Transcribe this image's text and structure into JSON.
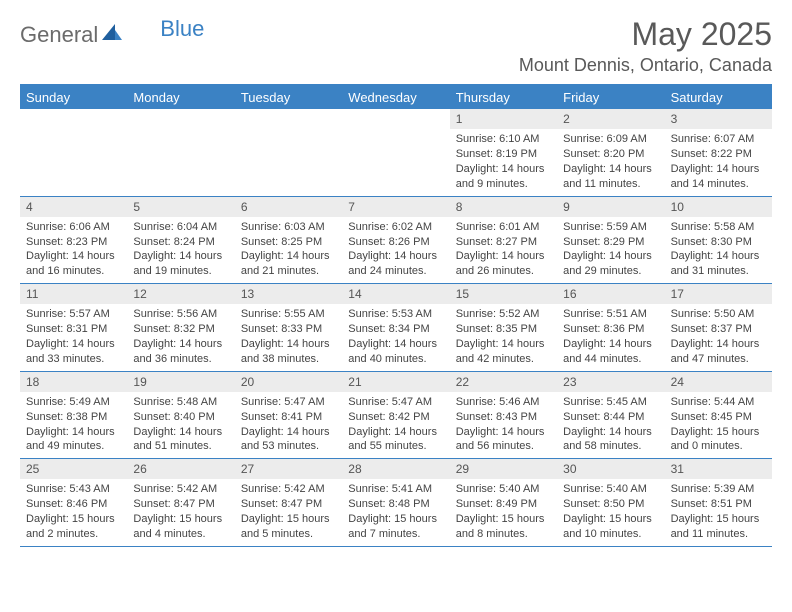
{
  "logo": {
    "text1": "General",
    "text2": "Blue"
  },
  "title": "May 2025",
  "location": "Mount Dennis, Ontario, Canada",
  "colors": {
    "accent": "#3b82c4",
    "header_text": "#595959",
    "day_band": "#ececec",
    "body_text": "#444444",
    "background": "#ffffff"
  },
  "dow": [
    "Sunday",
    "Monday",
    "Tuesday",
    "Wednesday",
    "Thursday",
    "Friday",
    "Saturday"
  ],
  "weeks": [
    [
      {
        "n": "",
        "sr": "",
        "ss": "",
        "dl": ""
      },
      {
        "n": "",
        "sr": "",
        "ss": "",
        "dl": ""
      },
      {
        "n": "",
        "sr": "",
        "ss": "",
        "dl": ""
      },
      {
        "n": "",
        "sr": "",
        "ss": "",
        "dl": ""
      },
      {
        "n": "1",
        "sr": "Sunrise: 6:10 AM",
        "ss": "Sunset: 8:19 PM",
        "dl": "Daylight: 14 hours and 9 minutes."
      },
      {
        "n": "2",
        "sr": "Sunrise: 6:09 AM",
        "ss": "Sunset: 8:20 PM",
        "dl": "Daylight: 14 hours and 11 minutes."
      },
      {
        "n": "3",
        "sr": "Sunrise: 6:07 AM",
        "ss": "Sunset: 8:22 PM",
        "dl": "Daylight: 14 hours and 14 minutes."
      }
    ],
    [
      {
        "n": "4",
        "sr": "Sunrise: 6:06 AM",
        "ss": "Sunset: 8:23 PM",
        "dl": "Daylight: 14 hours and 16 minutes."
      },
      {
        "n": "5",
        "sr": "Sunrise: 6:04 AM",
        "ss": "Sunset: 8:24 PM",
        "dl": "Daylight: 14 hours and 19 minutes."
      },
      {
        "n": "6",
        "sr": "Sunrise: 6:03 AM",
        "ss": "Sunset: 8:25 PM",
        "dl": "Daylight: 14 hours and 21 minutes."
      },
      {
        "n": "7",
        "sr": "Sunrise: 6:02 AM",
        "ss": "Sunset: 8:26 PM",
        "dl": "Daylight: 14 hours and 24 minutes."
      },
      {
        "n": "8",
        "sr": "Sunrise: 6:01 AM",
        "ss": "Sunset: 8:27 PM",
        "dl": "Daylight: 14 hours and 26 minutes."
      },
      {
        "n": "9",
        "sr": "Sunrise: 5:59 AM",
        "ss": "Sunset: 8:29 PM",
        "dl": "Daylight: 14 hours and 29 minutes."
      },
      {
        "n": "10",
        "sr": "Sunrise: 5:58 AM",
        "ss": "Sunset: 8:30 PM",
        "dl": "Daylight: 14 hours and 31 minutes."
      }
    ],
    [
      {
        "n": "11",
        "sr": "Sunrise: 5:57 AM",
        "ss": "Sunset: 8:31 PM",
        "dl": "Daylight: 14 hours and 33 minutes."
      },
      {
        "n": "12",
        "sr": "Sunrise: 5:56 AM",
        "ss": "Sunset: 8:32 PM",
        "dl": "Daylight: 14 hours and 36 minutes."
      },
      {
        "n": "13",
        "sr": "Sunrise: 5:55 AM",
        "ss": "Sunset: 8:33 PM",
        "dl": "Daylight: 14 hours and 38 minutes."
      },
      {
        "n": "14",
        "sr": "Sunrise: 5:53 AM",
        "ss": "Sunset: 8:34 PM",
        "dl": "Daylight: 14 hours and 40 minutes."
      },
      {
        "n": "15",
        "sr": "Sunrise: 5:52 AM",
        "ss": "Sunset: 8:35 PM",
        "dl": "Daylight: 14 hours and 42 minutes."
      },
      {
        "n": "16",
        "sr": "Sunrise: 5:51 AM",
        "ss": "Sunset: 8:36 PM",
        "dl": "Daylight: 14 hours and 44 minutes."
      },
      {
        "n": "17",
        "sr": "Sunrise: 5:50 AM",
        "ss": "Sunset: 8:37 PM",
        "dl": "Daylight: 14 hours and 47 minutes."
      }
    ],
    [
      {
        "n": "18",
        "sr": "Sunrise: 5:49 AM",
        "ss": "Sunset: 8:38 PM",
        "dl": "Daylight: 14 hours and 49 minutes."
      },
      {
        "n": "19",
        "sr": "Sunrise: 5:48 AM",
        "ss": "Sunset: 8:40 PM",
        "dl": "Daylight: 14 hours and 51 minutes."
      },
      {
        "n": "20",
        "sr": "Sunrise: 5:47 AM",
        "ss": "Sunset: 8:41 PM",
        "dl": "Daylight: 14 hours and 53 minutes."
      },
      {
        "n": "21",
        "sr": "Sunrise: 5:47 AM",
        "ss": "Sunset: 8:42 PM",
        "dl": "Daylight: 14 hours and 55 minutes."
      },
      {
        "n": "22",
        "sr": "Sunrise: 5:46 AM",
        "ss": "Sunset: 8:43 PM",
        "dl": "Daylight: 14 hours and 56 minutes."
      },
      {
        "n": "23",
        "sr": "Sunrise: 5:45 AM",
        "ss": "Sunset: 8:44 PM",
        "dl": "Daylight: 14 hours and 58 minutes."
      },
      {
        "n": "24",
        "sr": "Sunrise: 5:44 AM",
        "ss": "Sunset: 8:45 PM",
        "dl": "Daylight: 15 hours and 0 minutes."
      }
    ],
    [
      {
        "n": "25",
        "sr": "Sunrise: 5:43 AM",
        "ss": "Sunset: 8:46 PM",
        "dl": "Daylight: 15 hours and 2 minutes."
      },
      {
        "n": "26",
        "sr": "Sunrise: 5:42 AM",
        "ss": "Sunset: 8:47 PM",
        "dl": "Daylight: 15 hours and 4 minutes."
      },
      {
        "n": "27",
        "sr": "Sunrise: 5:42 AM",
        "ss": "Sunset: 8:47 PM",
        "dl": "Daylight: 15 hours and 5 minutes."
      },
      {
        "n": "28",
        "sr": "Sunrise: 5:41 AM",
        "ss": "Sunset: 8:48 PM",
        "dl": "Daylight: 15 hours and 7 minutes."
      },
      {
        "n": "29",
        "sr": "Sunrise: 5:40 AM",
        "ss": "Sunset: 8:49 PM",
        "dl": "Daylight: 15 hours and 8 minutes."
      },
      {
        "n": "30",
        "sr": "Sunrise: 5:40 AM",
        "ss": "Sunset: 8:50 PM",
        "dl": "Daylight: 15 hours and 10 minutes."
      },
      {
        "n": "31",
        "sr": "Sunrise: 5:39 AM",
        "ss": "Sunset: 8:51 PM",
        "dl": "Daylight: 15 hours and 11 minutes."
      }
    ]
  ]
}
